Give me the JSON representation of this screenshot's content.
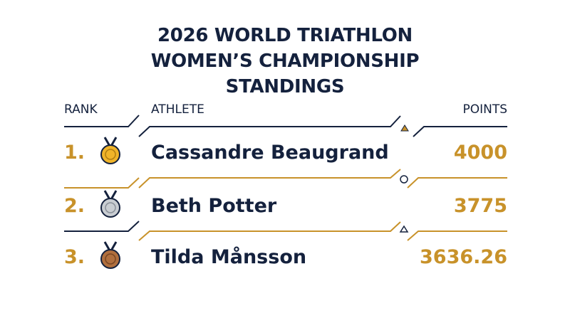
{
  "title": "2026 WORLD TRIATHLON WOMEN’S CHAMPIONSHIP STANDINGS",
  "table": {
    "headers": [
      "RANK",
      "ATHLETE",
      "POINTS"
    ],
    "rows": [
      [
        "1.",
        "Cassandre Beaugrand",
        4000
      ],
      [
        "2.",
        "Beth Potter",
        3775
      ],
      [
        "3.",
        "Tilda Månsson",
        3636.26
      ]
    ]
  }
}
